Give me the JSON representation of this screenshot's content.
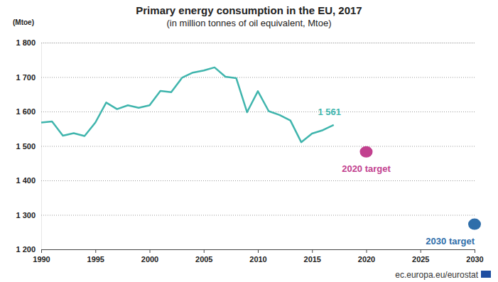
{
  "chart_data": {
    "type": "line",
    "title": "Primary energy consumption in the EU, 2017",
    "subtitle": "(in million tonnes of oil equivalent, Mtoe)",
    "y_label": "(Mtoe)",
    "source": "ec.europa.eu/eurostat",
    "x": [
      1990,
      1991,
      1992,
      1993,
      1994,
      1995,
      1996,
      1997,
      1998,
      1999,
      2000,
      2001,
      2002,
      2003,
      2004,
      2005,
      2006,
      2007,
      2008,
      2009,
      2010,
      2011,
      2012,
      2013,
      2014,
      2015,
      2016,
      2017
    ],
    "series": [
      {
        "type": "line",
        "color": "#40b5ad",
        "values": [
          1568,
          1571,
          1530,
          1537,
          1529,
          1568,
          1626,
          1607,
          1618,
          1611,
          1618,
          1660,
          1656,
          1698,
          1713,
          1719,
          1728,
          1701,
          1697,
          1598,
          1659,
          1601,
          1590,
          1574,
          1511,
          1536,
          1546,
          1561
        ]
      },
      {
        "name": "2020 target",
        "type": "scatter",
        "marker": "circle",
        "color": "#c2418f",
        "x": [
          2020
        ],
        "values": [
          1483
        ]
      },
      {
        "name": "2030 target",
        "type": "scatter",
        "marker": "circle",
        "color": "#2f6eaa",
        "x": [
          2030
        ],
        "values": [
          1273
        ]
      }
    ],
    "annotations": [
      {
        "text": "1 561",
        "x": 2017,
        "y": 1561
      }
    ],
    "xlim": [
      1990,
      2030
    ],
    "xticks": [
      1990,
      1995,
      2000,
      2005,
      2010,
      2015,
      2020,
      2025,
      2030
    ],
    "ylim": [
      1200,
      1800
    ],
    "yticks": [
      {
        "value": 1200,
        "label": "1 200"
      },
      {
        "value": 1300,
        "label": "1 300"
      },
      {
        "value": 1400,
        "label": "1 400"
      },
      {
        "value": 1500,
        "label": "1 500"
      },
      {
        "value": 1600,
        "label": "1 600"
      },
      {
        "value": 1700,
        "label": "1 700"
      },
      {
        "value": 1800,
        "label": "1 800"
      }
    ],
    "grid": true
  }
}
